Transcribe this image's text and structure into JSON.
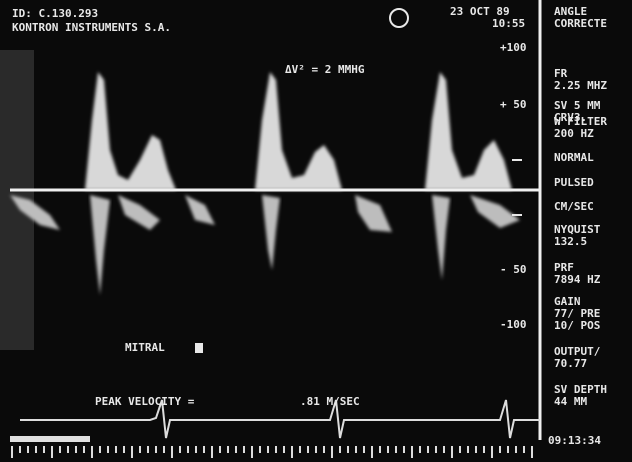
{
  "header": {
    "id": "ID: C.130.293",
    "company": "KONTRON INSTRUMENTS S.A.",
    "date": "23 OCT 89",
    "time": "10:55"
  },
  "scale": [
    "+100",
    "+ 50",
    "- 50",
    "-100"
  ],
  "measurement": "ΔV² =   2 MMHG",
  "valve": "MITRAL",
  "peak_velocity": {
    "label": "PEAK VELOCITY =",
    "value": ".81 M/SEC"
  },
  "sidebar": [
    [
      "ANGLE",
      "CORRECTE"
    ],
    [
      "FR",
      "2.25 MHZ"
    ],
    [
      "SV 5  MM",
      "CRV3."
    ],
    [
      "W FILTER",
      "200 HZ"
    ],
    [
      "NORMAL"
    ],
    [
      "PULSED"
    ],
    [
      "CM/SEC"
    ],
    [
      "NYQUIST",
      "132.5"
    ],
    [
      "PRF",
      "7894 HZ"
    ],
    [
      "GAIN",
      "77/ PRE",
      "10/ POS"
    ],
    [
      "OUTPUT/",
      "70.77"
    ],
    [
      "SV DEPTH",
      "44 MM"
    ]
  ],
  "footer_time": "09:13:34"
}
